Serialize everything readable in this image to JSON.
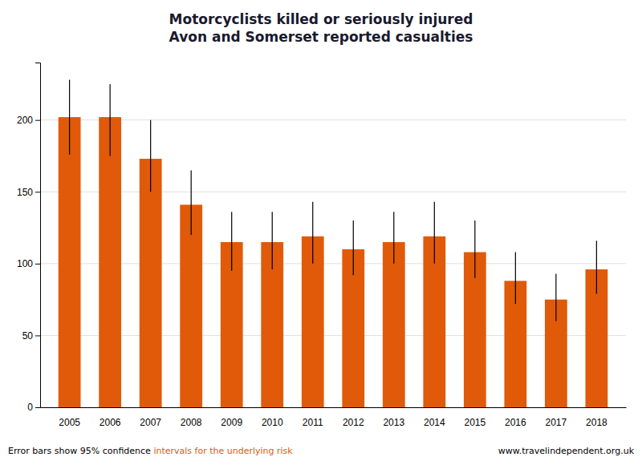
{
  "chart_data": {
    "type": "bar",
    "title": "Motorcyclists killed or seriously injured",
    "subtitle": "Avon and Somerset reported casualties",
    "categories": [
      "2005",
      "2006",
      "2007",
      "2008",
      "2009",
      "2010",
      "2011",
      "2012",
      "2013",
      "2014",
      "2015",
      "2016",
      "2017",
      "2018"
    ],
    "values": [
      202,
      202,
      173,
      141,
      115,
      115,
      119,
      110,
      115,
      119,
      108,
      88,
      75,
      96
    ],
    "err_upper": [
      26,
      23,
      27,
      24,
      21,
      21,
      24,
      20,
      21,
      24,
      22,
      20,
      18,
      20
    ],
    "err_lower": [
      26,
      27,
      23,
      21,
      20,
      19,
      19,
      18,
      15,
      19,
      18,
      16,
      15,
      17
    ],
    "color": "#e05a0a",
    "ylim": [
      0,
      240
    ],
    "yticks": [
      0,
      50,
      100,
      150,
      200
    ],
    "grid": true,
    "annotations": [
      {
        "text": "Error bars show 95% confidence ",
        "color": "#000000"
      },
      {
        "text": "intervals for the underlying risk",
        "color": "#e05a0a"
      },
      {
        "text": "www.travelindependent.org.uk",
        "color": "#000000"
      }
    ]
  }
}
